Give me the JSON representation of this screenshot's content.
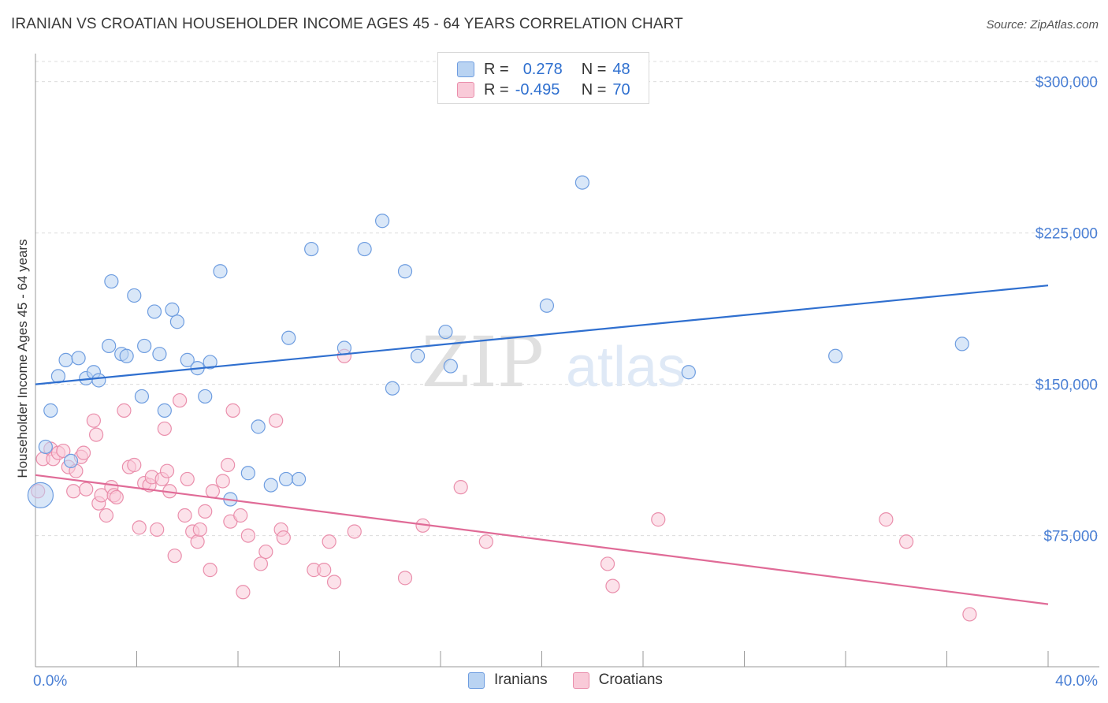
{
  "title": "IRANIAN VS CROATIAN HOUSEHOLDER INCOME AGES 45 - 64 YEARS CORRELATION CHART",
  "source": "Source: ZipAtlas.com",
  "watermark": {
    "zip": "ZIP",
    "atlas": "atlas"
  },
  "legend": {
    "r_label": "R =",
    "n_label": "N =",
    "rows": [
      {
        "r": "0.278",
        "n": "48",
        "color": "#6e9de0"
      },
      {
        "r": "-0.495",
        "n": "70",
        "color": "#ea8fac"
      }
    ]
  },
  "bottom_legend": [
    "Iranians",
    "Croatians"
  ],
  "chart_data": {
    "type": "scatter",
    "title": "IRANIAN VS CROATIAN HOUSEHOLDER INCOME AGES 45 - 64 YEARS CORRELATION CHART",
    "xlabel": "",
    "ylabel": "Householder Income Ages 45 - 64 years",
    "xlim": [
      0,
      40
    ],
    "ylim": [
      10000,
      310000
    ],
    "x_tick_labels": [
      "0.0%",
      "40.0%"
    ],
    "y_ticks": [
      75000,
      150000,
      225000,
      300000
    ],
    "y_tick_labels": [
      "$75,000",
      "$150,000",
      "$225,000",
      "$300,000"
    ],
    "grid": true,
    "legend_position": "top-center",
    "series": [
      {
        "name": "Iranians",
        "color": "#6e9de0",
        "fill": "#b9d3f2",
        "r": 0.278,
        "n": 48,
        "trend": {
          "x": [
            0,
            40
          ],
          "y": [
            150000,
            199000
          ]
        },
        "points": [
          [
            0.2,
            95000
          ],
          [
            0.4,
            119000
          ],
          [
            0.6,
            137000
          ],
          [
            0.9,
            154000
          ],
          [
            1.2,
            162000
          ],
          [
            1.4,
            112000
          ],
          [
            1.7,
            163000
          ],
          [
            2.0,
            153000
          ],
          [
            2.3,
            156000
          ],
          [
            2.5,
            152000
          ],
          [
            2.9,
            169000
          ],
          [
            3.0,
            201000
          ],
          [
            3.4,
            165000
          ],
          [
            3.6,
            164000
          ],
          [
            3.9,
            194000
          ],
          [
            4.2,
            144000
          ],
          [
            4.3,
            169000
          ],
          [
            4.7,
            186000
          ],
          [
            4.9,
            165000
          ],
          [
            5.1,
            137000
          ],
          [
            5.4,
            187000
          ],
          [
            5.6,
            181000
          ],
          [
            6.0,
            162000
          ],
          [
            6.4,
            158000
          ],
          [
            6.7,
            144000
          ],
          [
            6.9,
            161000
          ],
          [
            7.3,
            206000
          ],
          [
            7.7,
            93000
          ],
          [
            8.4,
            106000
          ],
          [
            8.8,
            129000
          ],
          [
            9.3,
            100000
          ],
          [
            9.9,
            103000
          ],
          [
            10.0,
            173000
          ],
          [
            10.4,
            103000
          ],
          [
            10.9,
            217000
          ],
          [
            12.2,
            168000
          ],
          [
            13.0,
            217000
          ],
          [
            13.7,
            231000
          ],
          [
            14.1,
            148000
          ],
          [
            14.6,
            206000
          ],
          [
            15.1,
            164000
          ],
          [
            16.2,
            176000
          ],
          [
            16.4,
            159000
          ],
          [
            20.2,
            189000
          ],
          [
            21.6,
            250000
          ],
          [
            25.8,
            156000
          ],
          [
            31.6,
            164000
          ],
          [
            36.6,
            170000
          ]
        ]
      },
      {
        "name": "Croatians",
        "color": "#ea8fac",
        "fill": "#f9cad8",
        "r": -0.495,
        "n": 70,
        "trend": {
          "x": [
            0,
            40
          ],
          "y": [
            105000,
            41000
          ]
        },
        "points": [
          [
            0.1,
            97000
          ],
          [
            0.3,
            113000
          ],
          [
            0.6,
            118000
          ],
          [
            0.7,
            113000
          ],
          [
            0.9,
            116000
          ],
          [
            1.1,
            117000
          ],
          [
            1.3,
            109000
          ],
          [
            1.5,
            97000
          ],
          [
            1.6,
            107000
          ],
          [
            1.8,
            114000
          ],
          [
            1.9,
            116000
          ],
          [
            2.0,
            98000
          ],
          [
            2.3,
            132000
          ],
          [
            2.4,
            125000
          ],
          [
            2.5,
            91000
          ],
          [
            2.6,
            95000
          ],
          [
            2.8,
            85000
          ],
          [
            3.0,
            99000
          ],
          [
            3.1,
            95000
          ],
          [
            3.2,
            94000
          ],
          [
            3.5,
            137000
          ],
          [
            3.7,
            109000
          ],
          [
            3.9,
            110000
          ],
          [
            4.1,
            79000
          ],
          [
            4.3,
            101000
          ],
          [
            4.5,
            100000
          ],
          [
            4.6,
            104000
          ],
          [
            4.8,
            78000
          ],
          [
            5.0,
            103000
          ],
          [
            5.1,
            128000
          ],
          [
            5.2,
            107000
          ],
          [
            5.3,
            97000
          ],
          [
            5.5,
            65000
          ],
          [
            5.7,
            142000
          ],
          [
            5.9,
            85000
          ],
          [
            6.0,
            103000
          ],
          [
            6.2,
            77000
          ],
          [
            6.4,
            72000
          ],
          [
            6.5,
            78000
          ],
          [
            6.7,
            87000
          ],
          [
            6.9,
            58000
          ],
          [
            7.0,
            97000
          ],
          [
            7.4,
            102000
          ],
          [
            7.6,
            110000
          ],
          [
            7.7,
            82000
          ],
          [
            7.8,
            137000
          ],
          [
            8.1,
            85000
          ],
          [
            8.2,
            47000
          ],
          [
            8.4,
            75000
          ],
          [
            8.9,
            61000
          ],
          [
            9.1,
            67000
          ],
          [
            9.5,
            132000
          ],
          [
            9.7,
            78000
          ],
          [
            9.8,
            74000
          ],
          [
            11.0,
            58000
          ],
          [
            11.4,
            58000
          ],
          [
            11.6,
            72000
          ],
          [
            11.8,
            52000
          ],
          [
            12.2,
            164000
          ],
          [
            12.6,
            77000
          ],
          [
            14.6,
            54000
          ],
          [
            15.3,
            80000
          ],
          [
            16.8,
            99000
          ],
          [
            17.8,
            72000
          ],
          [
            22.6,
            61000
          ],
          [
            22.8,
            50000
          ],
          [
            24.6,
            83000
          ],
          [
            33.6,
            83000
          ],
          [
            34.4,
            72000
          ],
          [
            36.9,
            36000
          ]
        ]
      }
    ]
  }
}
